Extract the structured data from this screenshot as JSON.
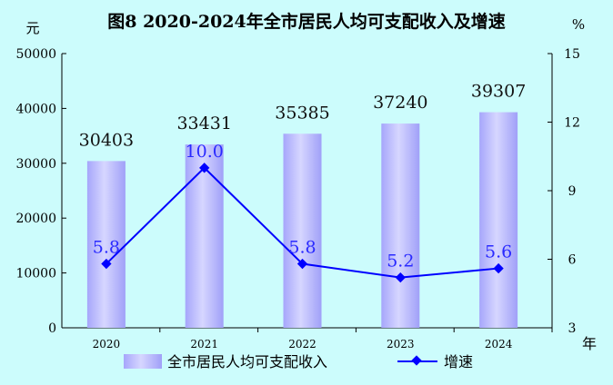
{
  "chart_data": {
    "type": "bar+line",
    "title": "图8  2020-2024年全市居民人均可支配收入及增速",
    "categories": [
      "2020",
      "2021",
      "2022",
      "2023",
      "2024"
    ],
    "series": [
      {
        "name": "全市居民人均可支配收入",
        "type": "bar",
        "axis": "left",
        "values": [
          30403,
          33431,
          35385,
          37240,
          39307
        ],
        "labels": [
          "30403",
          "33431",
          "35385",
          "37240",
          "39307"
        ]
      },
      {
        "name": "增速",
        "type": "line",
        "axis": "right",
        "values": [
          5.8,
          10.0,
          5.8,
          5.2,
          5.6
        ],
        "labels": [
          "5.8",
          "10.0",
          "5.8",
          "5.2",
          "5.6"
        ]
      }
    ],
    "left_axis": {
      "unit": "元",
      "ylim": [
        0,
        50000
      ],
      "ticks": [
        "0",
        "10000",
        "20000",
        "30000",
        "40000",
        "50000"
      ]
    },
    "right_axis": {
      "unit": "%",
      "ylim": [
        3,
        15
      ],
      "ticks": [
        "3",
        "6",
        "9",
        "12",
        "15"
      ]
    },
    "xlabel": "年",
    "legend_placement": "bottom",
    "colors": {
      "bar": "#a8a8ff",
      "bar_light": "#d4d4ff",
      "line": "#0000ff",
      "background": "#ccfcfc"
    }
  }
}
